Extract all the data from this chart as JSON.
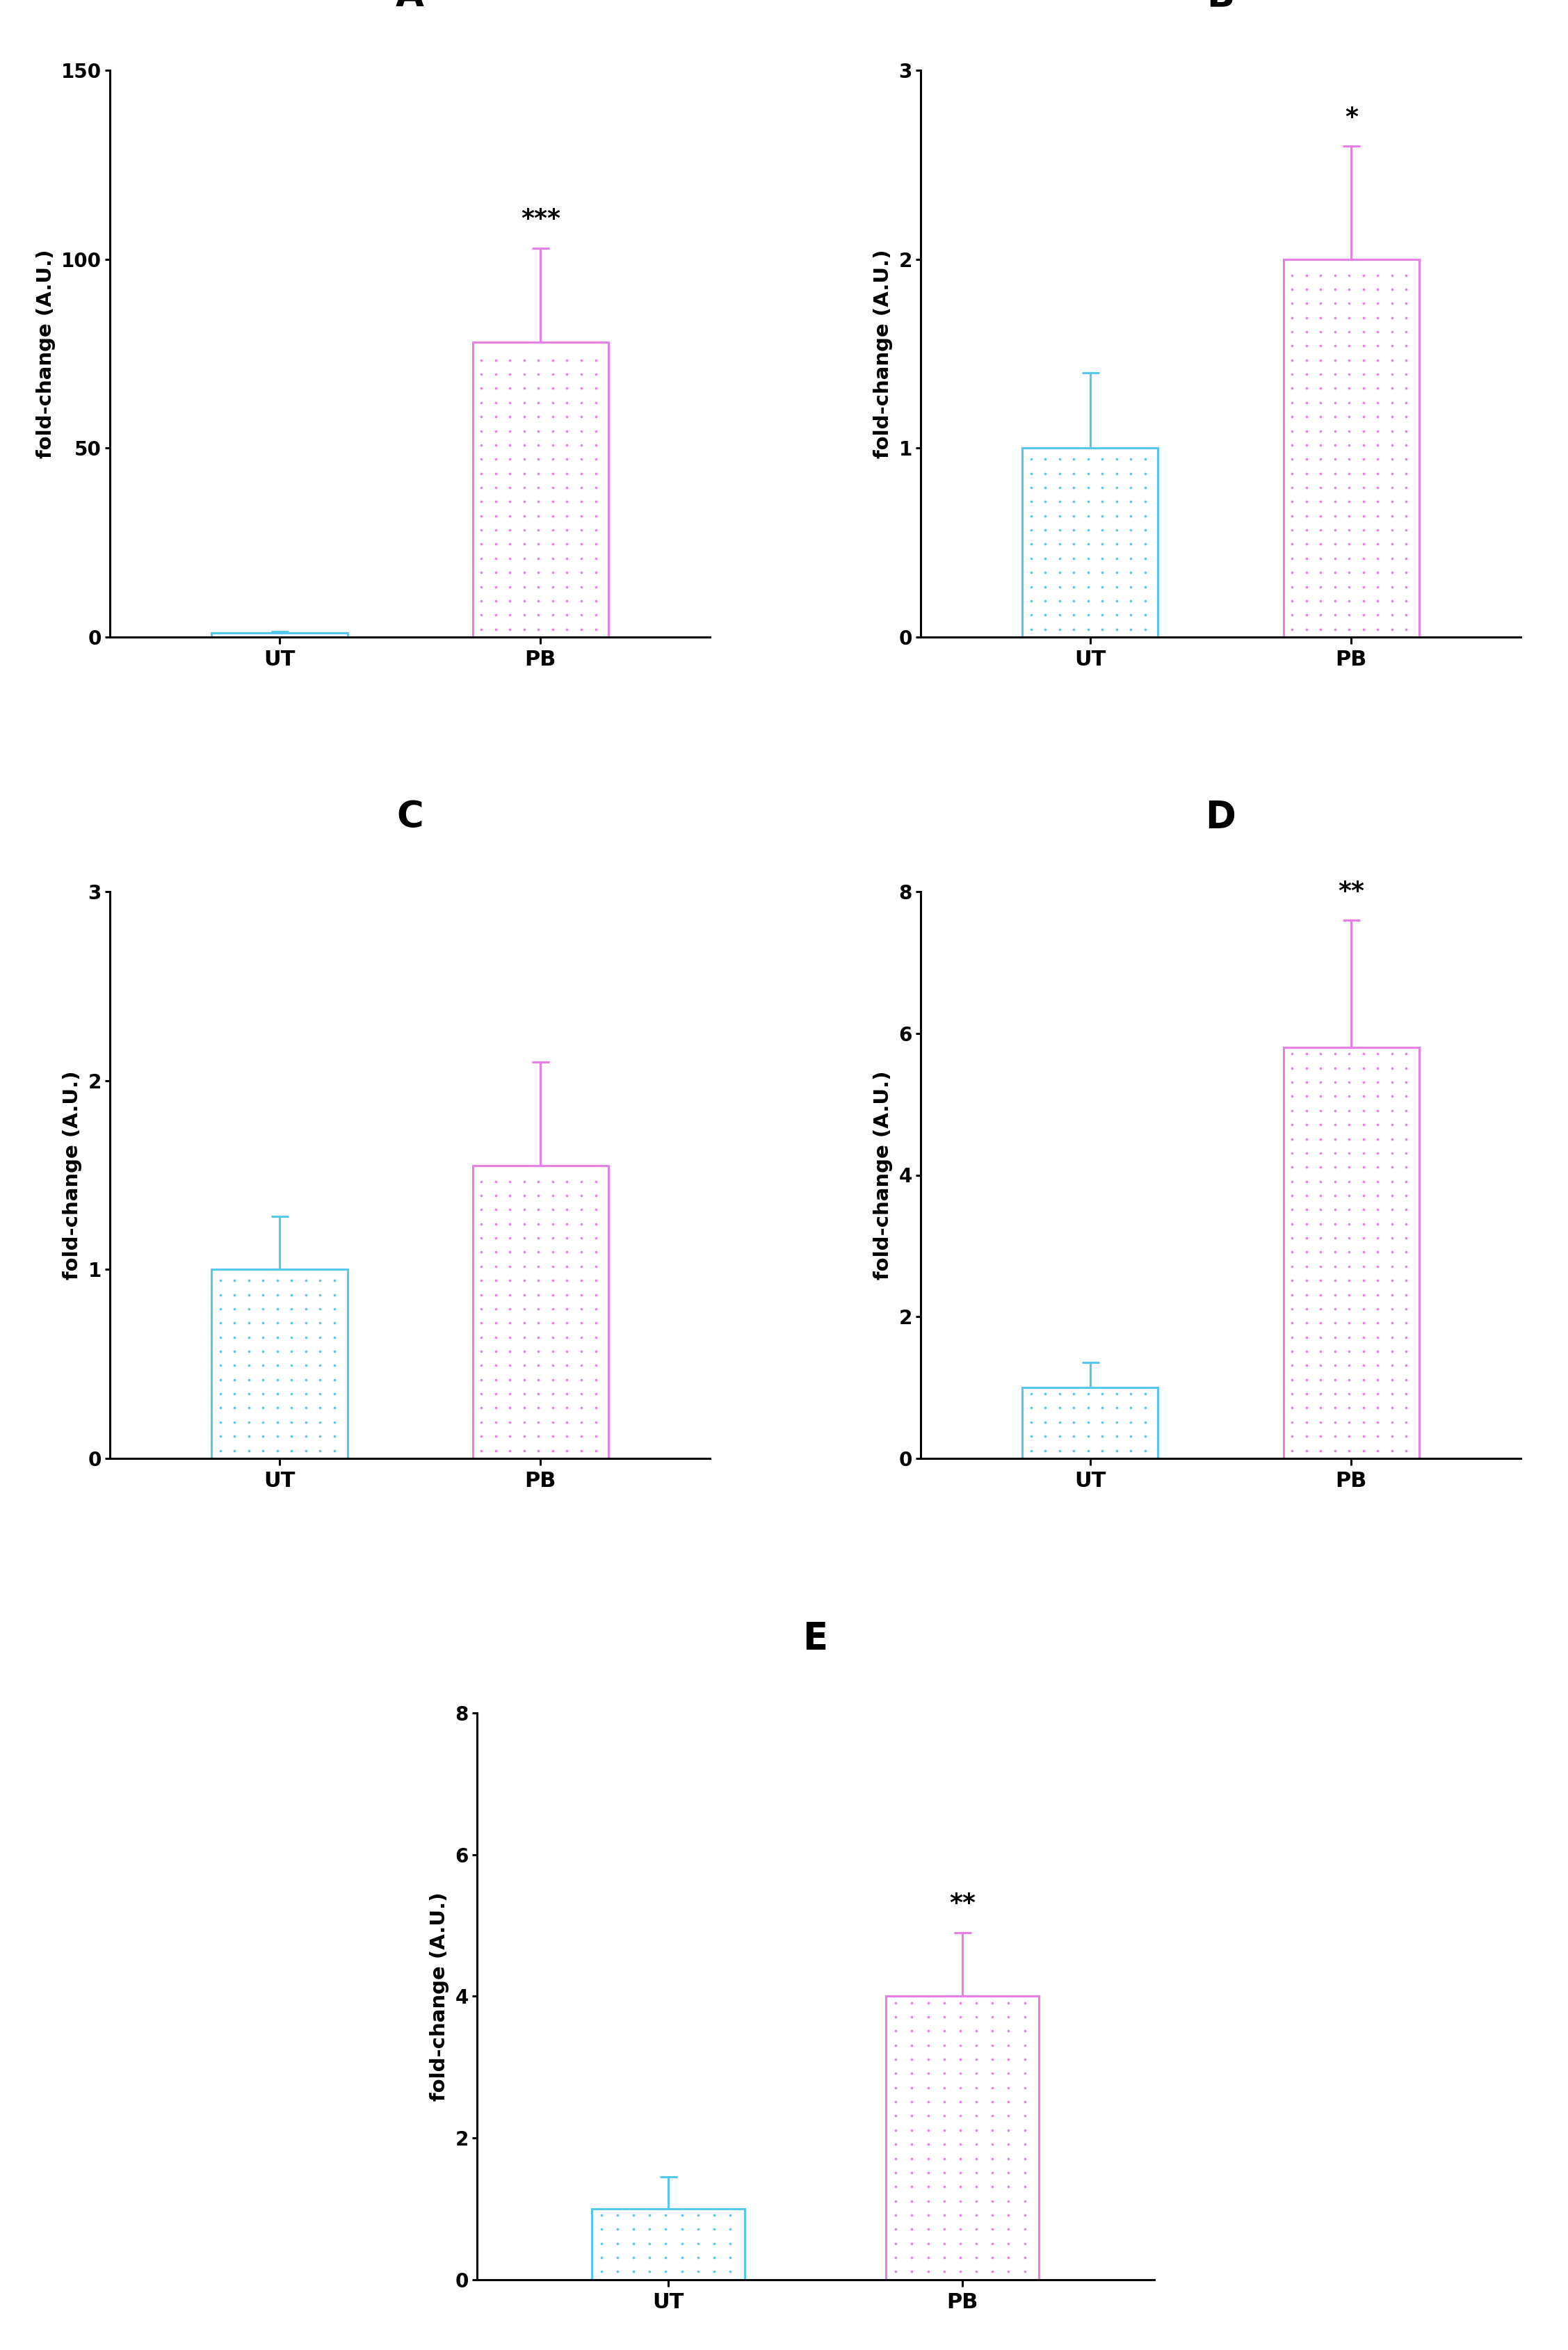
{
  "panels": [
    {
      "label": "A",
      "categories": [
        "UT",
        "PB"
      ],
      "values": [
        1,
        78
      ],
      "errors_up": [
        0.5,
        25
      ],
      "errors_down": [
        0.5,
        0
      ],
      "ylim": [
        0,
        150
      ],
      "yticks": [
        0,
        50,
        100,
        150
      ],
      "bar_colors": [
        "#55C8F0",
        "#E87EE8"
      ],
      "significance": "***",
      "sig_bar_idx": 1,
      "ylabel": "fold-change (A.U.)"
    },
    {
      "label": "B",
      "categories": [
        "UT",
        "PB"
      ],
      "values": [
        1.0,
        2.0
      ],
      "errors_up": [
        0.4,
        0.6
      ],
      "errors_down": [
        0.4,
        0.0
      ],
      "ylim": [
        0,
        3
      ],
      "yticks": [
        0,
        1,
        2,
        3
      ],
      "bar_colors": [
        "#55C8F0",
        "#E87EE8"
      ],
      "significance": "*",
      "sig_bar_idx": 1,
      "ylabel": "fold-change (A.U.)"
    },
    {
      "label": "C",
      "categories": [
        "UT",
        "PB"
      ],
      "values": [
        1.0,
        1.55
      ],
      "errors_up": [
        0.28,
        0.55
      ],
      "errors_down": [
        0.28,
        0.0
      ],
      "ylim": [
        0,
        3
      ],
      "yticks": [
        0,
        1,
        2,
        3
      ],
      "bar_colors": [
        "#55C8F0",
        "#E87EE8"
      ],
      "significance": "",
      "sig_bar_idx": 1,
      "ylabel": "fold-change (A.U.)"
    },
    {
      "label": "D",
      "categories": [
        "UT",
        "PB"
      ],
      "values": [
        1.0,
        5.8
      ],
      "errors_up": [
        0.35,
        1.8
      ],
      "errors_down": [
        0.35,
        0.0
      ],
      "ylim": [
        0,
        8
      ],
      "yticks": [
        0,
        2,
        4,
        6,
        8
      ],
      "bar_colors": [
        "#55C8F0",
        "#E87EE8"
      ],
      "significance": "**",
      "sig_bar_idx": 1,
      "ylabel": "fold-change (A.U.)"
    },
    {
      "label": "E",
      "categories": [
        "UT",
        "PB"
      ],
      "values": [
        1.0,
        4.0
      ],
      "errors_up": [
        0.45,
        0.9
      ],
      "errors_down": [
        0.45,
        0.0
      ],
      "ylim": [
        0,
        8
      ],
      "yticks": [
        0,
        2,
        4,
        6,
        8
      ],
      "bar_colors": [
        "#55C8F0",
        "#E87EE8"
      ],
      "significance": "**",
      "sig_bar_idx": 1,
      "ylabel": "fold-change (A.U.)"
    }
  ],
  "background_color": "#ffffff",
  "bar_width": 0.52,
  "tick_fontsize": 20,
  "ylabel_fontsize": 21,
  "xlabel_fontsize": 22,
  "sig_fontsize": 26,
  "panel_label_fontsize": 38,
  "elinewidth": 2.2,
  "capsize": 9,
  "capthick": 2.2
}
